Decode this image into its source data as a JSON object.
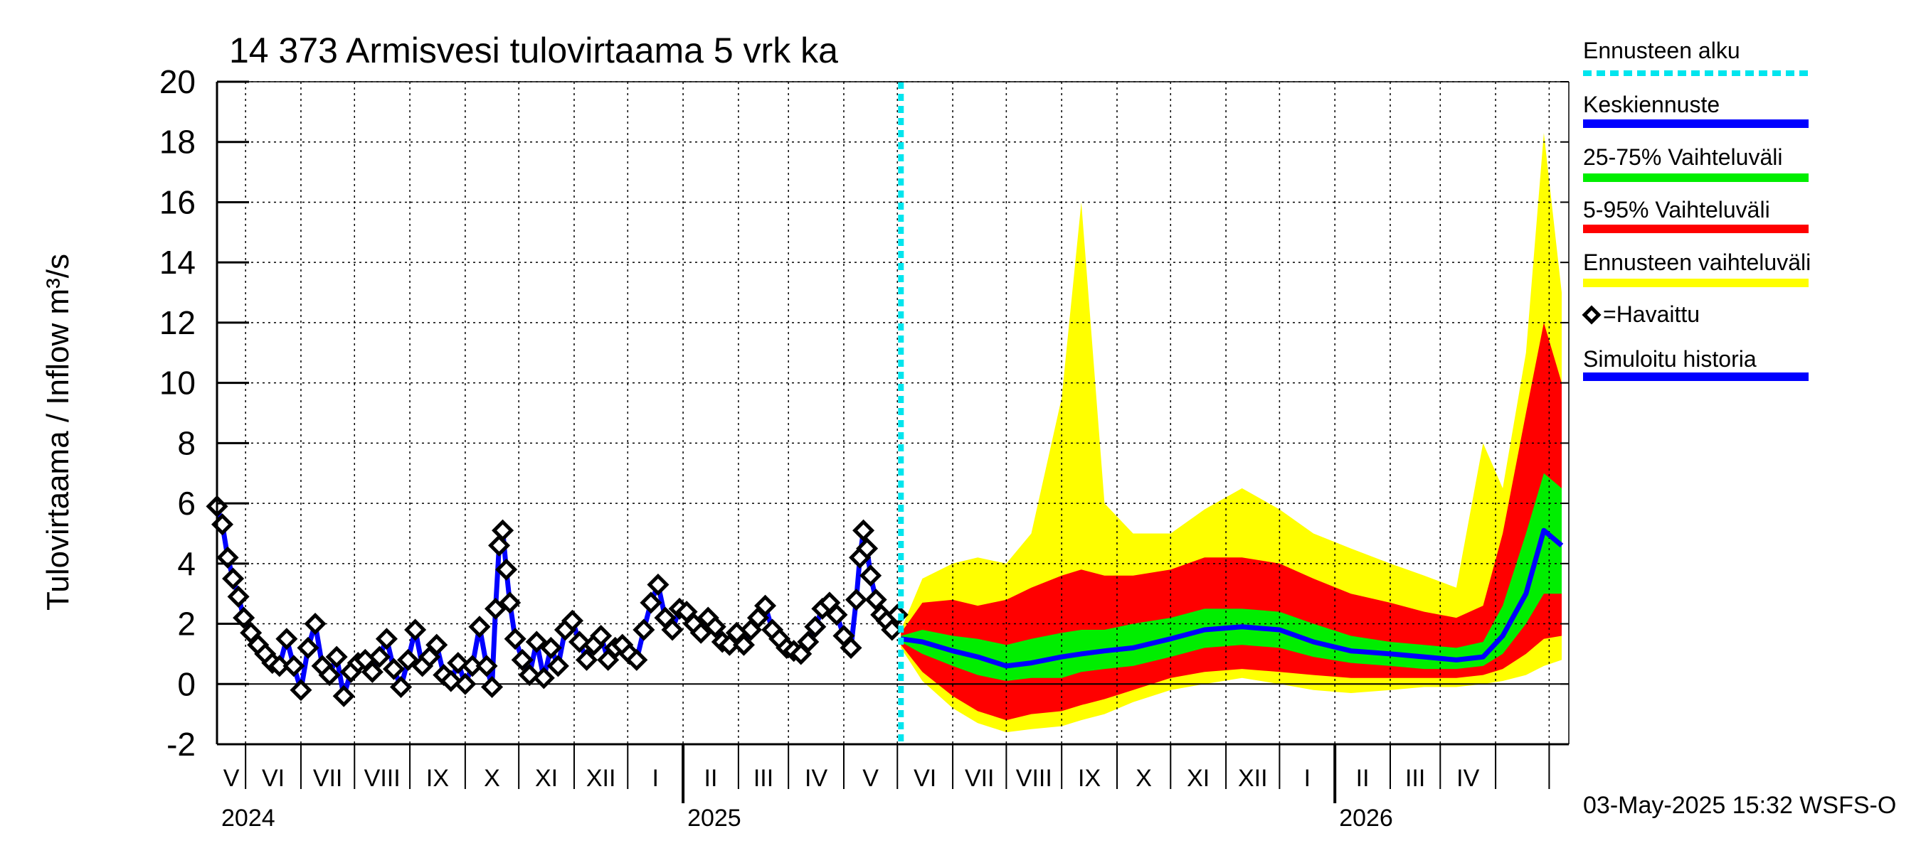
{
  "chart_data": {
    "type": "line",
    "title": "14 373 Armisvesi tulovirtaama 5 vrk ka",
    "ylabel": "Tulovirtaama / Inflow    m³/s",
    "ylim": [
      -2,
      20
    ],
    "yticks": [
      -2,
      0,
      2,
      4,
      6,
      8,
      10,
      12,
      14,
      16,
      18,
      20
    ],
    "xlim": [
      "2024-04-15",
      "2026-05-12"
    ],
    "forecast_start": "2025-05-03",
    "months": [
      "V",
      "VI",
      "VII",
      "VIII",
      "IX",
      "X",
      "XI",
      "XII",
      "I",
      "II",
      "III",
      "IV",
      "V",
      "VI",
      "VII",
      "VIII",
      "IX",
      "X",
      "XI",
      "XII",
      "I",
      "II",
      "III",
      "IV"
    ],
    "years": [
      "2024",
      "2025",
      "2026"
    ],
    "timestamp": "03-May-2025 15:32 WSFS-O",
    "legend": [
      {
        "label": "Ennusteen alku",
        "color": "#00e5ee",
        "style": "dashed"
      },
      {
        "label": "Keskiennuste",
        "color": "#0000ff",
        "style": "line"
      },
      {
        "label": "25-75% Vaihteluväli",
        "color": "#00ee00",
        "style": "line"
      },
      {
        "label": "5-95% Vaihteluväli",
        "color": "#ff0000",
        "style": "line"
      },
      {
        "label": "Ennusteen vaihteluväli",
        "color": "#ffff00",
        "style": "line"
      },
      {
        "label": "=Havaittu",
        "color": "#000000",
        "style": "marker"
      },
      {
        "label": "Simuloitu historia",
        "color": "#0000ff",
        "style": "line"
      }
    ],
    "observed": [
      [
        "2024-04-15",
        5.9
      ],
      [
        "2024-04-18",
        5.3
      ],
      [
        "2024-04-21",
        4.2
      ],
      [
        "2024-04-24",
        3.5
      ],
      [
        "2024-04-27",
        2.9
      ],
      [
        "2024-04-30",
        2.2
      ],
      [
        "2024-05-04",
        1.7
      ],
      [
        "2024-05-08",
        1.3
      ],
      [
        "2024-05-12",
        1.0
      ],
      [
        "2024-05-16",
        0.7
      ],
      [
        "2024-05-20",
        0.6
      ],
      [
        "2024-05-24",
        1.5
      ],
      [
        "2024-05-28",
        0.6
      ],
      [
        "2024-06-01",
        -0.2
      ],
      [
        "2024-06-05",
        1.2
      ],
      [
        "2024-06-09",
        2.0
      ],
      [
        "2024-06-13",
        0.6
      ],
      [
        "2024-06-17",
        0.3
      ],
      [
        "2024-06-21",
        0.9
      ],
      [
        "2024-06-25",
        -0.4
      ],
      [
        "2024-06-29",
        0.4
      ],
      [
        "2024-07-03",
        0.7
      ],
      [
        "2024-07-07",
        0.8
      ],
      [
        "2024-07-11",
        0.4
      ],
      [
        "2024-07-15",
        0.9
      ],
      [
        "2024-07-19",
        1.5
      ],
      [
        "2024-07-23",
        0.5
      ],
      [
        "2024-07-27",
        -0.1
      ],
      [
        "2024-07-31",
        0.8
      ],
      [
        "2024-08-04",
        1.8
      ],
      [
        "2024-08-08",
        0.6
      ],
      [
        "2024-08-12",
        0.9
      ],
      [
        "2024-08-16",
        1.3
      ],
      [
        "2024-08-20",
        0.3
      ],
      [
        "2024-08-24",
        0.1
      ],
      [
        "2024-08-28",
        0.7
      ],
      [
        "2024-09-01",
        0.0
      ],
      [
        "2024-09-05",
        0.6
      ],
      [
        "2024-09-09",
        1.9
      ],
      [
        "2024-09-13",
        0.6
      ],
      [
        "2024-09-16",
        -0.1
      ],
      [
        "2024-09-18",
        2.5
      ],
      [
        "2024-09-20",
        4.6
      ],
      [
        "2024-09-22",
        5.1
      ],
      [
        "2024-09-24",
        3.8
      ],
      [
        "2024-09-26",
        2.7
      ],
      [
        "2024-09-29",
        1.5
      ],
      [
        "2024-10-03",
        0.8
      ],
      [
        "2024-10-07",
        0.3
      ],
      [
        "2024-10-11",
        1.4
      ],
      [
        "2024-10-15",
        0.2
      ],
      [
        "2024-10-19",
        1.2
      ],
      [
        "2024-10-23",
        0.6
      ],
      [
        "2024-10-27",
        1.8
      ],
      [
        "2024-10-31",
        2.1
      ],
      [
        "2024-11-04",
        1.4
      ],
      [
        "2024-11-08",
        0.8
      ],
      [
        "2024-11-12",
        1.3
      ],
      [
        "2024-11-16",
        1.6
      ],
      [
        "2024-11-20",
        0.8
      ],
      [
        "2024-11-24",
        1.2
      ],
      [
        "2024-11-28",
        1.3
      ],
      [
        "2024-12-02",
        1.0
      ],
      [
        "2024-12-06",
        0.8
      ],
      [
        "2024-12-10",
        1.8
      ],
      [
        "2024-12-14",
        2.7
      ],
      [
        "2024-12-18",
        3.3
      ],
      [
        "2024-12-22",
        2.2
      ],
      [
        "2024-12-26",
        1.8
      ],
      [
        "2024-12-30",
        2.5
      ],
      [
        "2025-01-03",
        2.4
      ],
      [
        "2025-01-07",
        2.0
      ],
      [
        "2025-01-11",
        1.7
      ],
      [
        "2025-01-15",
        2.2
      ],
      [
        "2025-01-19",
        1.9
      ],
      [
        "2025-01-23",
        1.4
      ],
      [
        "2025-01-27",
        1.3
      ],
      [
        "2025-01-31",
        1.7
      ],
      [
        "2025-02-04",
        1.3
      ],
      [
        "2025-02-08",
        1.8
      ],
      [
        "2025-02-12",
        2.2
      ],
      [
        "2025-02-16",
        2.6
      ],
      [
        "2025-02-20",
        1.8
      ],
      [
        "2025-02-24",
        1.5
      ],
      [
        "2025-02-28",
        1.2
      ],
      [
        "2025-03-04",
        1.1
      ],
      [
        "2025-03-08",
        1.0
      ],
      [
        "2025-03-12",
        1.4
      ],
      [
        "2025-03-16",
        1.9
      ],
      [
        "2025-03-20",
        2.5
      ],
      [
        "2025-03-24",
        2.7
      ],
      [
        "2025-03-28",
        2.3
      ],
      [
        "2025-04-01",
        1.6
      ],
      [
        "2025-04-05",
        1.2
      ],
      [
        "2025-04-08",
        2.8
      ],
      [
        "2025-04-10",
        4.2
      ],
      [
        "2025-04-12",
        5.1
      ],
      [
        "2025-04-14",
        4.5
      ],
      [
        "2025-04-16",
        3.6
      ],
      [
        "2025-04-19",
        2.8
      ],
      [
        "2025-04-22",
        2.3
      ],
      [
        "2025-04-25",
        2.1
      ],
      [
        "2025-04-28",
        1.8
      ],
      [
        "2025-05-01",
        2.3
      ]
    ],
    "forecast": [
      {
        "date": "2025-05-03",
        "min": 1.2,
        "p5": 1.3,
        "p25": 1.4,
        "median": 1.5,
        "p75": 1.6,
        "p95": 1.7,
        "max": 1.8
      },
      {
        "date": "2025-05-15",
        "min": 0.1,
        "p5": 0.4,
        "p25": 1.0,
        "median": 1.4,
        "p75": 1.8,
        "p95": 2.7,
        "max": 3.5
      },
      {
        "date": "2025-06-01",
        "min": -0.8,
        "p5": -0.4,
        "p25": 0.6,
        "median": 1.1,
        "p75": 1.6,
        "p95": 2.8,
        "max": 4.0
      },
      {
        "date": "2025-06-15",
        "min": -1.3,
        "p5": -0.9,
        "p25": 0.3,
        "median": 0.9,
        "p75": 1.5,
        "p95": 2.6,
        "max": 4.2
      },
      {
        "date": "2025-07-01",
        "min": -1.6,
        "p5": -1.2,
        "p25": 0.1,
        "median": 0.6,
        "p75": 1.3,
        "p95": 2.8,
        "max": 4.0
      },
      {
        "date": "2025-07-15",
        "min": -1.5,
        "p5": -1.0,
        "p25": 0.2,
        "median": 0.7,
        "p75": 1.5,
        "p95": 3.2,
        "max": 5.0
      },
      {
        "date": "2025-08-01",
        "min": -1.4,
        "p5": -0.9,
        "p25": 0.2,
        "median": 0.9,
        "p75": 1.7,
        "p95": 3.6,
        "max": 9.5
      },
      {
        "date": "2025-08-12",
        "min": -1.2,
        "p5": -0.7,
        "p25": 0.4,
        "median": 1.0,
        "p75": 1.8,
        "p95": 3.8,
        "max": 16.0
      },
      {
        "date": "2025-08-25",
        "min": -1.0,
        "p5": -0.5,
        "p25": 0.5,
        "median": 1.1,
        "p75": 1.8,
        "p95": 3.6,
        "max": 6.0
      },
      {
        "date": "2025-09-10",
        "min": -0.6,
        "p5": -0.2,
        "p25": 0.6,
        "median": 1.2,
        "p75": 2.0,
        "p95": 3.6,
        "max": 5.0
      },
      {
        "date": "2025-10-01",
        "min": -0.2,
        "p5": 0.2,
        "p25": 0.9,
        "median": 1.5,
        "p75": 2.2,
        "p95": 3.8,
        "max": 5.0
      },
      {
        "date": "2025-10-20",
        "min": 0.0,
        "p5": 0.4,
        "p25": 1.2,
        "median": 1.8,
        "p75": 2.5,
        "p95": 4.2,
        "max": 5.8
      },
      {
        "date": "2025-11-10",
        "min": 0.2,
        "p5": 0.5,
        "p25": 1.3,
        "median": 1.9,
        "p75": 2.5,
        "p95": 4.2,
        "max": 6.5
      },
      {
        "date": "2025-12-01",
        "min": 0.0,
        "p5": 0.4,
        "p25": 1.2,
        "median": 1.8,
        "p75": 2.4,
        "p95": 4.0,
        "max": 5.8
      },
      {
        "date": "2025-12-20",
        "min": -0.2,
        "p5": 0.3,
        "p25": 0.9,
        "median": 1.4,
        "p75": 2.0,
        "p95": 3.5,
        "max": 5.0
      },
      {
        "date": "2026-01-10",
        "min": -0.3,
        "p5": 0.2,
        "p25": 0.7,
        "median": 1.1,
        "p75": 1.6,
        "p95": 3.0,
        "max": 4.5
      },
      {
        "date": "2026-02-01",
        "min": -0.2,
        "p5": 0.2,
        "p25": 0.6,
        "median": 1.0,
        "p75": 1.4,
        "p95": 2.7,
        "max": 4.0
      },
      {
        "date": "2026-02-20",
        "min": -0.1,
        "p5": 0.2,
        "p25": 0.5,
        "median": 0.9,
        "p75": 1.3,
        "p95": 2.4,
        "max": 3.6
      },
      {
        "date": "2026-03-10",
        "min": -0.1,
        "p5": 0.2,
        "p25": 0.5,
        "median": 0.8,
        "p75": 1.2,
        "p95": 2.2,
        "max": 3.2
      },
      {
        "date": "2026-03-25",
        "min": 0.0,
        "p5": 0.3,
        "p25": 0.6,
        "median": 0.9,
        "p75": 1.4,
        "p95": 2.6,
        "max": 8.0
      },
      {
        "date": "2026-04-05",
        "min": 0.1,
        "p5": 0.5,
        "p25": 1.0,
        "median": 1.6,
        "p75": 2.6,
        "p95": 5.0,
        "max": 6.5
      },
      {
        "date": "2026-04-18",
        "min": 0.3,
        "p5": 1.0,
        "p25": 2.0,
        "median": 3.0,
        "p75": 5.0,
        "p95": 9.0,
        "max": 11.0
      },
      {
        "date": "2026-04-28",
        "min": 0.6,
        "p5": 1.5,
        "p25": 3.0,
        "median": 5.1,
        "p75": 7.0,
        "p95": 12.0,
        "max": 18.3
      },
      {
        "date": "2026-05-08",
        "min": 0.8,
        "p5": 1.6,
        "p25": 3.0,
        "median": 4.6,
        "p75": 6.5,
        "p95": 10.0,
        "max": 13.0
      }
    ]
  }
}
